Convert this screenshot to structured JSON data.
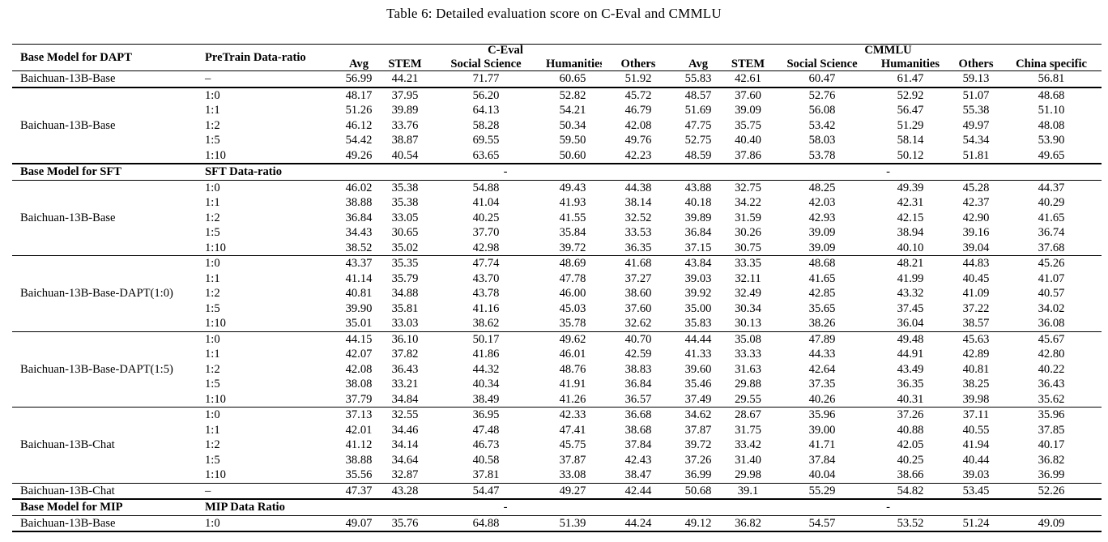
{
  "title": "Table 6: Detailed evaluation score on C-Eval and CMMLU",
  "header": {
    "model_col": "Base Model for DAPT",
    "ratio_col": "PreTrain Data-ratio",
    "ceval_group": "C-Eval",
    "cmmlu_group": "CMMLU",
    "ceval_cols": [
      "Avg",
      "STEM",
      "Social Science",
      "Humanities",
      "Others"
    ],
    "cmmlu_cols": [
      "Avg",
      "STEM",
      "Social Science",
      "Humanities",
      "Others",
      "China specific"
    ]
  },
  "chart_data": {
    "type": "table",
    "title": "Table 6: Detailed evaluation score on C-Eval and CMMLU",
    "columns": [
      "Model",
      "Data-ratio",
      "C-Eval Avg",
      "C-Eval STEM",
      "C-Eval Social Science",
      "C-Eval Humanities",
      "C-Eval Others",
      "CMMLU Avg",
      "CMMLU STEM",
      "CMMLU Social Science",
      "CMMLU Humanities",
      "CMMLU Others",
      "CMMLU China specific"
    ]
  },
  "table": {
    "rows": [
      {
        "kind": "single",
        "model": "Baichuan-13B-Base",
        "ratio": "–",
        "values": [
          "56.99",
          "44.21",
          "71.77",
          "60.65",
          "51.92",
          "55.83",
          "42.61",
          "60.47",
          "61.47",
          "59.13",
          "56.81"
        ]
      },
      {
        "kind": "block",
        "model": "Baichuan-13B-Base",
        "entries": [
          {
            "ratio": "1:0",
            "values": [
              "48.17",
              "37.95",
              "56.20",
              "52.82",
              "45.72",
              "48.57",
              "37.60",
              "52.76",
              "52.92",
              "51.07",
              "48.68"
            ]
          },
          {
            "ratio": "1:1",
            "values": [
              "51.26",
              "39.89",
              "64.13",
              "54.21",
              "46.79",
              "51.69",
              "39.09",
              "56.08",
              "56.47",
              "55.38",
              "51.10"
            ]
          },
          {
            "ratio": "1:2",
            "values": [
              "46.12",
              "33.76",
              "58.28",
              "50.34",
              "42.08",
              "47.75",
              "35.75",
              "53.42",
              "51.29",
              "49.97",
              "48.08"
            ]
          },
          {
            "ratio": "1:5",
            "values": [
              "54.42",
              "38.87",
              "69.55",
              "59.50",
              "49.76",
              "52.75",
              "40.40",
              "58.03",
              "58.14",
              "54.34",
              "53.90"
            ]
          },
          {
            "ratio": "1:10",
            "values": [
              "49.26",
              "40.54",
              "63.65",
              "50.60",
              "42.23",
              "48.59",
              "37.86",
              "53.78",
              "50.12",
              "51.81",
              "49.65"
            ]
          }
        ]
      },
      {
        "kind": "divider",
        "model": "Base Model for SFT",
        "ratio": "SFT Data-ratio",
        "ceval_dash": "-",
        "cmmlu_dash": "-"
      },
      {
        "kind": "block",
        "model": "Baichuan-13B-Base",
        "entries": [
          {
            "ratio": "1:0",
            "values": [
              "46.02",
              "35.38",
              "54.88",
              "49.43",
              "44.38",
              "43.88",
              "32.75",
              "48.25",
              "49.39",
              "45.28",
              "44.37"
            ]
          },
          {
            "ratio": "1:1",
            "values": [
              "38.88",
              "35.38",
              "41.04",
              "41.93",
              "38.14",
              "40.18",
              "34.22",
              "42.03",
              "42.31",
              "42.37",
              "40.29"
            ]
          },
          {
            "ratio": "1:2",
            "values": [
              "36.84",
              "33.05",
              "40.25",
              "41.55",
              "32.52",
              "39.89",
              "31.59",
              "42.93",
              "42.15",
              "42.90",
              "41.65"
            ]
          },
          {
            "ratio": "1:5",
            "values": [
              "34.43",
              "30.65",
              "37.70",
              "35.84",
              "33.53",
              "36.84",
              "30.26",
              "39.09",
              "38.94",
              "39.16",
              "36.74"
            ]
          },
          {
            "ratio": "1:10",
            "values": [
              "38.52",
              "35.02",
              "42.98",
              "39.72",
              "36.35",
              "37.15",
              "30.75",
              "39.09",
              "40.10",
              "39.04",
              "37.68"
            ]
          }
        ]
      },
      {
        "kind": "block",
        "model": "Baichuan-13B-Base-DAPT(1:0)",
        "entries": [
          {
            "ratio": "1:0",
            "values": [
              "43.37",
              "35.35",
              "47.74",
              "48.69",
              "41.68",
              "43.84",
              "33.35",
              "48.68",
              "48.21",
              "44.83",
              "45.26"
            ]
          },
          {
            "ratio": "1:1",
            "values": [
              "41.14",
              "35.79",
              "43.70",
              "47.78",
              "37.27",
              "39.03",
              "32.11",
              "41.65",
              "41.99",
              "40.45",
              "41.07"
            ]
          },
          {
            "ratio": "1:2",
            "values": [
              "40.81",
              "34.88",
              "43.78",
              "46.00",
              "38.60",
              "39.92",
              "32.49",
              "42.85",
              "43.32",
              "41.09",
              "40.57"
            ]
          },
          {
            "ratio": "1:5",
            "values": [
              "39.90",
              "35.81",
              "41.16",
              "45.03",
              "37.60",
              "35.00",
              "30.34",
              "35.65",
              "37.45",
              "37.22",
              "34.02"
            ]
          },
          {
            "ratio": "1:10",
            "values": [
              "35.01",
              "33.03",
              "38.62",
              "35.78",
              "32.62",
              "35.83",
              "30.13",
              "38.26",
              "36.04",
              "38.57",
              "36.08"
            ]
          }
        ]
      },
      {
        "kind": "block",
        "model": "Baichuan-13B-Base-DAPT(1:5)",
        "entries": [
          {
            "ratio": "1:0",
            "values": [
              "44.15",
              "36.10",
              "50.17",
              "49.62",
              "40.70",
              "44.44",
              "35.08",
              "47.89",
              "49.48",
              "45.63",
              "45.67"
            ]
          },
          {
            "ratio": "1:1",
            "values": [
              "42.07",
              "37.82",
              "41.86",
              "46.01",
              "42.59",
              "41.33",
              "33.33",
              "44.33",
              "44.91",
              "42.89",
              "42.80"
            ]
          },
          {
            "ratio": "1:2",
            "values": [
              "42.08",
              "36.43",
              "44.32",
              "48.76",
              "38.83",
              "39.60",
              "31.63",
              "42.64",
              "43.49",
              "40.81",
              "40.22"
            ]
          },
          {
            "ratio": "1:5",
            "values": [
              "38.08",
              "33.21",
              "40.34",
              "41.91",
              "36.84",
              "35.46",
              "29.88",
              "37.35",
              "36.35",
              "38.25",
              "36.43"
            ]
          },
          {
            "ratio": "1:10",
            "values": [
              "37.79",
              "34.84",
              "38.49",
              "41.26",
              "36.57",
              "37.49",
              "29.55",
              "40.26",
              "40.31",
              "39.98",
              "35.62"
            ]
          }
        ]
      },
      {
        "kind": "block",
        "model": "Baichuan-13B-Chat",
        "entries": [
          {
            "ratio": "1:0",
            "values": [
              "37.13",
              "32.55",
              "36.95",
              "42.33",
              "36.68",
              "34.62",
              "28.67",
              "35.96",
              "37.26",
              "37.11",
              "35.96"
            ]
          },
          {
            "ratio": "1:1",
            "values": [
              "42.01",
              "34.46",
              "47.48",
              "47.41",
              "38.68",
              "37.87",
              "31.75",
              "39.00",
              "40.88",
              "40.55",
              "37.85"
            ]
          },
          {
            "ratio": "1:2",
            "values": [
              "41.12",
              "34.14",
              "46.73",
              "45.75",
              "37.84",
              "39.72",
              "33.42",
              "41.71",
              "42.05",
              "41.94",
              "40.17"
            ]
          },
          {
            "ratio": "1:5",
            "values": [
              "38.88",
              "34.64",
              "40.58",
              "37.87",
              "42.43",
              "37.26",
              "31.40",
              "37.84",
              "40.25",
              "40.44",
              "36.82"
            ]
          },
          {
            "ratio": "1:10",
            "values": [
              "35.56",
              "32.87",
              "37.81",
              "33.08",
              "38.47",
              "36.99",
              "29.98",
              "40.04",
              "38.66",
              "39.03",
              "36.99"
            ]
          }
        ]
      },
      {
        "kind": "single",
        "model": "Baichuan-13B-Chat",
        "ratio": "–",
        "values": [
          "47.37",
          "43.28",
          "54.47",
          "49.27",
          "42.44",
          "50.68",
          "39.1",
          "55.29",
          "54.82",
          "53.45",
          "52.26"
        ]
      },
      {
        "kind": "divider",
        "model": "Base Model for MIP",
        "ratio": "MIP Data Ratio",
        "ceval_dash": "-",
        "cmmlu_dash": "-"
      },
      {
        "kind": "single",
        "model": "Baichuan-13B-Base",
        "ratio": "1:0",
        "values": [
          "49.07",
          "35.76",
          "64.88",
          "51.39",
          "44.24",
          "49.12",
          "36.82",
          "54.57",
          "53.52",
          "51.24",
          "49.09"
        ]
      }
    ]
  }
}
